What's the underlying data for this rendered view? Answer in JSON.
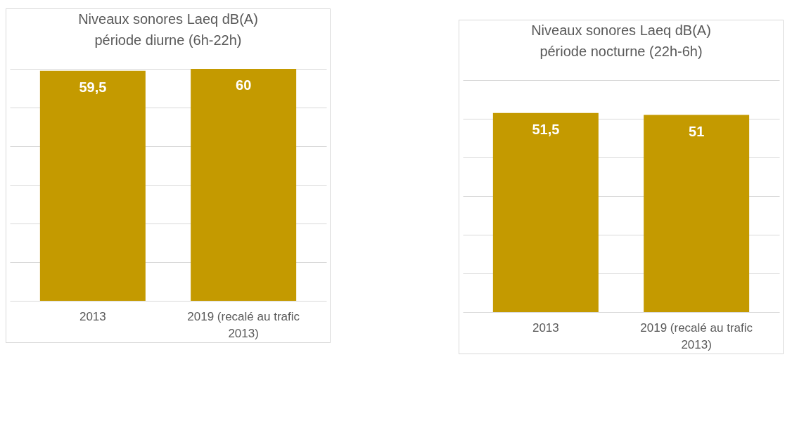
{
  "chart_data": [
    {
      "type": "bar",
      "title": "Niveaux sonores Laeq  dB(A)\npériode diurne (6h-22h)",
      "categories": [
        "2013",
        "2019 (recalé au trafic 2013)"
      ],
      "series": [
        {
          "color": "#c49a00",
          "values": [
            59.5,
            60
          ],
          "value_labels": [
            "59,5",
            "60"
          ]
        }
      ],
      "ylim": [
        0,
        60
      ],
      "yticks": [
        0,
        10,
        20,
        30,
        40,
        50,
        60
      ],
      "grid": "y",
      "tick_labels": "x"
    },
    {
      "type": "bar",
      "title": "Niveaux sonores Laeq  dB(A)\npériode nocturne (22h-6h)",
      "categories": [
        "2013",
        "2019 (recalé au trafic 2013)"
      ],
      "series": [
        {
          "color": "#c49a00",
          "values": [
            51.5,
            51
          ],
          "value_labels": [
            "51,5",
            "51"
          ]
        }
      ],
      "ylim": [
        0,
        60
      ],
      "yticks": [
        0,
        10,
        20,
        30,
        40,
        50,
        60
      ],
      "grid": "y",
      "tick_labels": "x"
    }
  ]
}
